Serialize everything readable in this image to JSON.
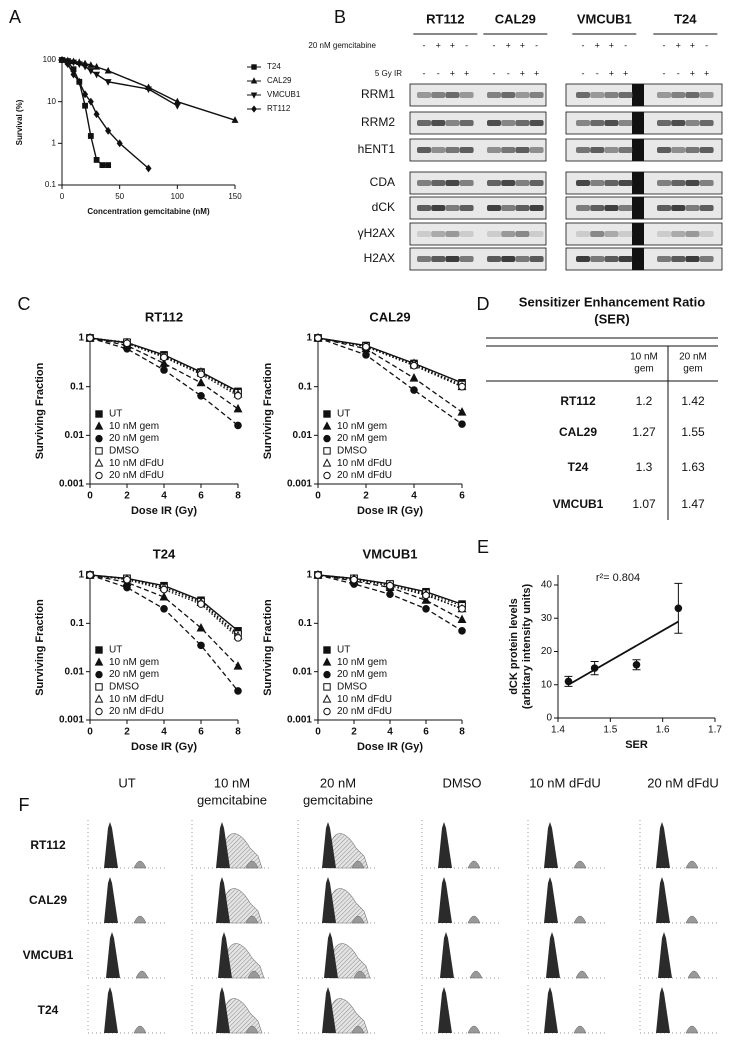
{
  "panel_labels": [
    "A",
    "B",
    "C",
    "D",
    "E",
    "F"
  ],
  "chart_data": [
    {
      "type": "line",
      "ylabel": "Survival  (%)",
      "xlabel": "Concentration gemcitabine (nM)",
      "log_y": true,
      "xlim": [
        0,
        150
      ],
      "ylim": [
        0.1,
        100
      ],
      "xticks": [
        0,
        50,
        100,
        150
      ],
      "yticks": [
        0.1,
        1,
        10,
        100
      ],
      "legend": "outside-right",
      "series": [
        {
          "name": "T24",
          "color": "#111111",
          "marker": "square",
          "filled": true,
          "dash": "solid",
          "x": [
            0,
            5,
            10,
            15,
            20,
            25,
            30,
            35,
            40
          ],
          "values": [
            100,
            90,
            60,
            30,
            8,
            1.5,
            0.4,
            0.3,
            0.3
          ]
        },
        {
          "name": "CAL29",
          "color": "#111111",
          "marker": "triangle",
          "filled": true,
          "dash": "solid",
          "x": [
            0,
            5,
            10,
            15,
            20,
            25,
            30,
            40,
            75,
            100,
            150
          ],
          "values": [
            100,
            97,
            92,
            88,
            82,
            75,
            68,
            55,
            22,
            10,
            3.6
          ]
        },
        {
          "name": "VMCUB1",
          "color": "#111111",
          "marker": "triangle-down",
          "filled": true,
          "dash": "solid",
          "x": [
            0,
            5,
            10,
            15,
            20,
            25,
            30,
            40,
            75,
            100
          ],
          "values": [
            100,
            95,
            88,
            80,
            70,
            55,
            45,
            30,
            20,
            8
          ]
        },
        {
          "name": "RT112",
          "color": "#111111",
          "marker": "diamond",
          "filled": true,
          "dash": "solid",
          "x": [
            0,
            5,
            10,
            15,
            20,
            25,
            30,
            40,
            50,
            75
          ],
          "values": [
            100,
            80,
            45,
            30,
            15,
            10,
            5,
            2,
            1,
            0.25
          ]
        }
      ]
    },
    {
      "type": "line",
      "title": "RT112",
      "ylabel": "Surviving Fraction",
      "xlabel": "Dose IR (Gy)",
      "log_y": true,
      "xlim": [
        0,
        8
      ],
      "ylim": [
        0.001,
        1
      ],
      "xticks": [
        0,
        2,
        4,
        6,
        8
      ],
      "yticks": [
        0.001,
        0.01,
        0.1,
        1
      ],
      "legend": "lower-left",
      "x": [
        0,
        2,
        4,
        6,
        8
      ],
      "series": [
        {
          "name": "UT",
          "color": "#111111",
          "marker": "square",
          "filled": true,
          "dash": "solid",
          "values": [
            1,
            0.8,
            0.45,
            0.2,
            0.08
          ]
        },
        {
          "name": "10 nM gem",
          "color": "#111111",
          "marker": "triangle",
          "filled": true,
          "dash": "dashed",
          "values": [
            1,
            0.7,
            0.3,
            0.12,
            0.035
          ]
        },
        {
          "name": "20 nM gem",
          "color": "#111111",
          "marker": "circle",
          "filled": true,
          "dash": "dashed",
          "values": [
            1,
            0.6,
            0.22,
            0.065,
            0.016
          ]
        },
        {
          "name": "DMSO",
          "color": "#111111",
          "marker": "square",
          "filled": false,
          "dash": "dotted",
          "values": [
            1,
            0.82,
            0.42,
            0.19,
            0.075
          ]
        },
        {
          "name": "10 nM dFdU",
          "color": "#111111",
          "marker": "triangle",
          "filled": false,
          "dash": "dotted",
          "values": [
            1,
            0.8,
            0.43,
            0.2,
            0.07
          ]
        },
        {
          "name": "20 nM dFdU",
          "color": "#111111",
          "marker": "circle",
          "filled": false,
          "dash": "dotted",
          "values": [
            1,
            0.78,
            0.4,
            0.18,
            0.065
          ]
        }
      ]
    },
    {
      "type": "line",
      "title": "CAL29",
      "ylabel": "Surviving Fraction",
      "xlabel": "Dose IR (Gy)",
      "log_y": true,
      "xlim": [
        0,
        6
      ],
      "ylim": [
        0.001,
        1
      ],
      "xticks": [
        0,
        2,
        4,
        6
      ],
      "yticks": [
        0.001,
        0.01,
        0.1,
        1
      ],
      "legend": "lower-left",
      "x": [
        0,
        2,
        4,
        6
      ],
      "series": [
        {
          "name": "UT",
          "color": "#111111",
          "marker": "square",
          "filled": true,
          "dash": "solid",
          "values": [
            1,
            0.7,
            0.3,
            0.12
          ]
        },
        {
          "name": "10 nM gem",
          "color": "#111111",
          "marker": "triangle",
          "filled": true,
          "dash": "dashed",
          "values": [
            1,
            0.6,
            0.15,
            0.03
          ]
        },
        {
          "name": "20 nM gem",
          "color": "#111111",
          "marker": "circle",
          "filled": true,
          "dash": "dashed",
          "values": [
            1,
            0.45,
            0.085,
            0.017
          ]
        },
        {
          "name": "DMSO",
          "color": "#111111",
          "marker": "square",
          "filled": false,
          "dash": "dotted",
          "values": [
            1,
            0.68,
            0.28,
            0.11
          ]
        },
        {
          "name": "10 nM dFdU",
          "color": "#111111",
          "marker": "triangle",
          "filled": false,
          "dash": "dotted",
          "values": [
            1,
            0.68,
            0.3,
            0.1
          ]
        },
        {
          "name": "20 nM dFdU",
          "color": "#111111",
          "marker": "circle",
          "filled": false,
          "dash": "dotted",
          "values": [
            1,
            0.66,
            0.27,
            0.1
          ]
        }
      ]
    },
    {
      "type": "line",
      "title": "T24",
      "ylabel": "Surviving Fraction",
      "xlabel": "Dose IR (Gy)",
      "log_y": true,
      "xlim": [
        0,
        8
      ],
      "ylim": [
        0.001,
        1
      ],
      "xticks": [
        0,
        2,
        4,
        6,
        8
      ],
      "yticks": [
        0.001,
        0.01,
        0.1,
        1
      ],
      "legend": "lower-left",
      "x": [
        0,
        2,
        4,
        6,
        8
      ],
      "series": [
        {
          "name": "UT",
          "color": "#111111",
          "marker": "square",
          "filled": true,
          "dash": "solid",
          "values": [
            1,
            0.85,
            0.6,
            0.3,
            0.07
          ]
        },
        {
          "name": "10 nM gem",
          "color": "#111111",
          "marker": "triangle",
          "filled": true,
          "dash": "dashed",
          "values": [
            1,
            0.7,
            0.35,
            0.08,
            0.013
          ]
        },
        {
          "name": "20 nM gem",
          "color": "#111111",
          "marker": "circle",
          "filled": true,
          "dash": "dashed",
          "values": [
            1,
            0.55,
            0.2,
            0.035,
            0.004
          ]
        },
        {
          "name": "DMSO",
          "color": "#111111",
          "marker": "square",
          "filled": false,
          "dash": "dotted",
          "values": [
            1,
            0.85,
            0.55,
            0.28,
            0.06
          ]
        },
        {
          "name": "10 nM dFdU",
          "color": "#111111",
          "marker": "triangle",
          "filled": false,
          "dash": "dotted",
          "values": [
            1,
            0.82,
            0.55,
            0.27,
            0.055
          ]
        },
        {
          "name": "20 nM dFdU",
          "color": "#111111",
          "marker": "circle",
          "filled": false,
          "dash": "dotted",
          "values": [
            1,
            0.8,
            0.5,
            0.25,
            0.05
          ]
        }
      ]
    },
    {
      "type": "line",
      "title": "VMCUB1",
      "ylabel": "Surviving Fraction",
      "xlabel": "Dose IR (Gy)",
      "log_y": true,
      "xlim": [
        0,
        8
      ],
      "ylim": [
        0.001,
        1
      ],
      "xticks": [
        0,
        2,
        4,
        6,
        8
      ],
      "yticks": [
        0.001,
        0.01,
        0.1,
        1
      ],
      "legend": "lower-left",
      "x": [
        0,
        2,
        4,
        6,
        8
      ],
      "series": [
        {
          "name": "UT",
          "color": "#111111",
          "marker": "square",
          "filled": true,
          "dash": "solid",
          "values": [
            1,
            0.85,
            0.65,
            0.45,
            0.25
          ]
        },
        {
          "name": "10 nM gem",
          "color": "#111111",
          "marker": "triangle",
          "filled": true,
          "dash": "dashed",
          "values": [
            1,
            0.75,
            0.55,
            0.3,
            0.12
          ]
        },
        {
          "name": "20 nM gem",
          "color": "#111111",
          "marker": "circle",
          "filled": true,
          "dash": "dashed",
          "values": [
            1,
            0.65,
            0.4,
            0.2,
            0.07
          ]
        },
        {
          "name": "DMSO",
          "color": "#111111",
          "marker": "square",
          "filled": false,
          "dash": "dotted",
          "values": [
            1,
            0.85,
            0.65,
            0.42,
            0.23
          ]
        },
        {
          "name": "10 nM dFdU",
          "color": "#111111",
          "marker": "triangle",
          "filled": false,
          "dash": "dotted",
          "values": [
            1,
            0.83,
            0.6,
            0.4,
            0.2
          ]
        },
        {
          "name": "20 nM dFdU",
          "color": "#111111",
          "marker": "circle",
          "filled": false,
          "dash": "dotted",
          "values": [
            1,
            0.8,
            0.6,
            0.38,
            0.2
          ]
        }
      ]
    },
    {
      "type": "scatter",
      "ylabel": [
        "dCK protein levels",
        "(arbitary intensity units)"
      ],
      "xlabel": "SER",
      "annotation": "r²= 0.804",
      "log_y": false,
      "xlim": [
        1.4,
        1.7
      ],
      "ylim": [
        0,
        43
      ],
      "xticks": [
        1.4,
        1.5,
        1.6,
        1.7
      ],
      "yticks": [
        0,
        10,
        20,
        30,
        40
      ],
      "series": [
        {
          "color": "#111111",
          "marker": "circle",
          "filled": true,
          "x": [
            1.42,
            1.47,
            1.55,
            1.63
          ],
          "values": [
            11,
            15,
            16,
            33
          ],
          "errors": [
            1.5,
            2,
            1.5,
            7.5
          ]
        }
      ],
      "fit": {
        "x": [
          1.42,
          1.63
        ],
        "y": [
          10,
          29
        ]
      }
    }
  ],
  "blot": {
    "cell_lines": [
      "RT112",
      "CAL29",
      "VMCUB1",
      "T24"
    ],
    "treatments": [
      {
        "label": "20 nM gemcitabine",
        "signs": [
          [
            "-",
            "+",
            "+",
            "-"
          ],
          [
            "-",
            "+",
            "+",
            "-"
          ],
          [
            "-",
            "+",
            "+",
            "-"
          ],
          [
            "-",
            "+",
            "+",
            "-"
          ]
        ]
      },
      {
        "label": "5 Gy IR",
        "signs": [
          [
            "-",
            "-",
            "+",
            "+"
          ],
          [
            "-",
            "-",
            "+",
            "+"
          ],
          [
            "-",
            "-",
            "+",
            "+"
          ],
          [
            "-",
            "-",
            "+",
            "+"
          ]
        ]
      }
    ],
    "proteins": [
      "RRM1",
      "RRM2",
      "hENT1",
      "CDA",
      "dCK",
      "γH2AX",
      "H2AX"
    ]
  },
  "table": {
    "title": [
      "Sensitizer Enhancement Ratio",
      "(SER)"
    ],
    "columns": [
      [
        "10 nM",
        "gem"
      ],
      [
        "20 nM",
        "gem"
      ]
    ],
    "rows": [
      {
        "label": "RT112",
        "values": [
          1.2,
          1.42
        ]
      },
      {
        "label": "CAL29",
        "values": [
          1.27,
          1.55
        ]
      },
      {
        "label": "T24",
        "values": [
          1.3,
          1.63
        ]
      },
      {
        "label": "VMCUB1",
        "values": [
          1.07,
          1.47
        ]
      }
    ]
  },
  "flow": {
    "columns": [
      [
        "UT"
      ],
      [
        "10 nM",
        "gemcitabine"
      ],
      [
        "20 nM",
        "gemcitabine"
      ],
      [
        "DMSO"
      ],
      [
        "10 nM dFdU"
      ],
      [
        "20 nM dFdU"
      ]
    ],
    "rows": [
      "RT112",
      "CAL29",
      "VMCUB1",
      "T24"
    ]
  }
}
